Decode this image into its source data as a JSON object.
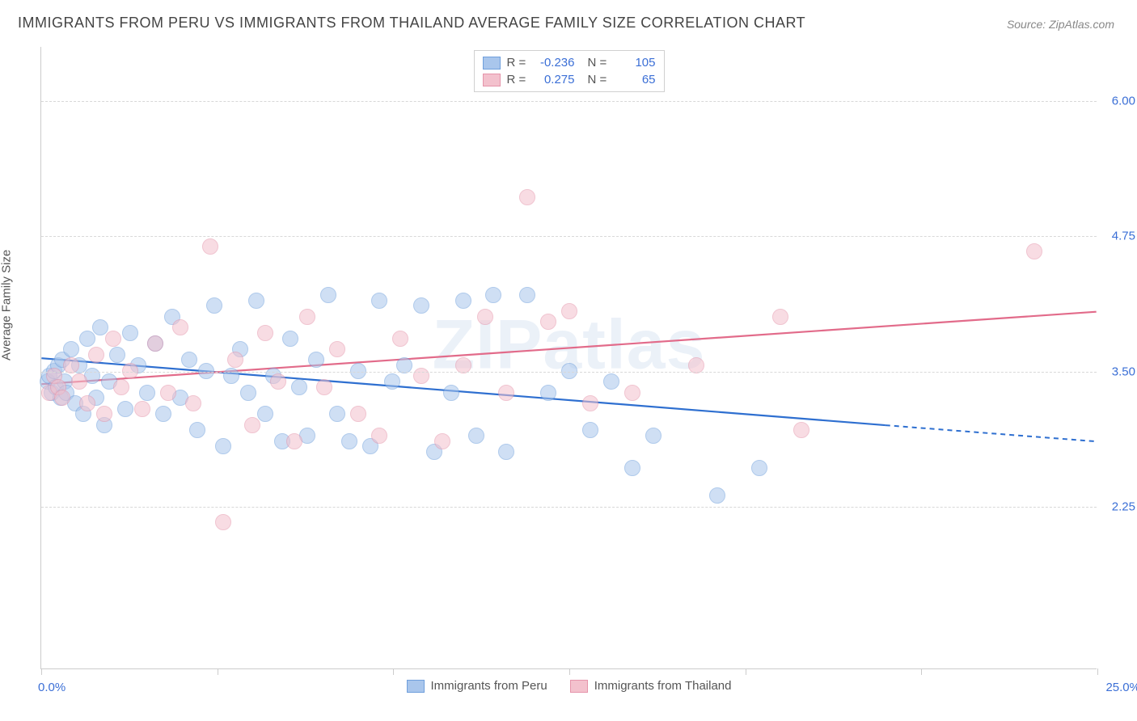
{
  "title": "IMMIGRANTS FROM PERU VS IMMIGRANTS FROM THAILAND AVERAGE FAMILY SIZE CORRELATION CHART",
  "source_prefix": "Source: ",
  "source_name": "ZipAtlas.com",
  "watermark_text": "ZIPatlas",
  "chart": {
    "type": "scatter",
    "ylabel": "Average Family Size",
    "xlim": [
      0.0,
      25.0
    ],
    "ylim": [
      0.75,
      6.5
    ],
    "xlim_labels": {
      "min": "0.0%",
      "max": "25.0%"
    },
    "yticks": [
      2.25,
      3.5,
      4.75,
      6.0
    ],
    "ytick_labels": [
      "2.25",
      "3.50",
      "4.75",
      "6.00"
    ],
    "xtick_positions": [
      0,
      4.17,
      8.33,
      12.5,
      16.67,
      20.83,
      25.0
    ],
    "background_color": "#ffffff",
    "grid_color": "#d8d8d8",
    "marker_radius": 10,
    "marker_opacity": 0.55,
    "series": [
      {
        "name": "Immigrants from Peru",
        "key": "peru",
        "fill_color": "#a9c6ec",
        "stroke_color": "#6f9fdc",
        "line_color": "#2e6fd0",
        "R": "-0.236",
        "N": "105",
        "trend": {
          "x1": 0.0,
          "y1": 3.62,
          "x2": 20.0,
          "y2": 3.0,
          "dash_x2": 25.0,
          "dash_y2": 2.85
        },
        "points": [
          [
            0.15,
            3.4
          ],
          [
            0.2,
            3.45
          ],
          [
            0.25,
            3.3
          ],
          [
            0.3,
            3.5
          ],
          [
            0.35,
            3.35
          ],
          [
            0.4,
            3.55
          ],
          [
            0.45,
            3.25
          ],
          [
            0.5,
            3.6
          ],
          [
            0.55,
            3.4
          ],
          [
            0.6,
            3.3
          ],
          [
            0.7,
            3.7
          ],
          [
            0.8,
            3.2
          ],
          [
            0.9,
            3.55
          ],
          [
            1.0,
            3.1
          ],
          [
            1.1,
            3.8
          ],
          [
            1.2,
            3.45
          ],
          [
            1.3,
            3.25
          ],
          [
            1.4,
            3.9
          ],
          [
            1.5,
            3.0
          ],
          [
            1.6,
            3.4
          ],
          [
            1.8,
            3.65
          ],
          [
            2.0,
            3.15
          ],
          [
            2.1,
            3.85
          ],
          [
            2.3,
            3.55
          ],
          [
            2.5,
            3.3
          ],
          [
            2.7,
            3.75
          ],
          [
            2.9,
            3.1
          ],
          [
            3.1,
            4.0
          ],
          [
            3.3,
            3.25
          ],
          [
            3.5,
            3.6
          ],
          [
            3.7,
            2.95
          ],
          [
            3.9,
            3.5
          ],
          [
            4.1,
            4.1
          ],
          [
            4.3,
            2.8
          ],
          [
            4.5,
            3.45
          ],
          [
            4.7,
            3.7
          ],
          [
            4.9,
            3.3
          ],
          [
            5.1,
            4.15
          ],
          [
            5.3,
            3.1
          ],
          [
            5.5,
            3.45
          ],
          [
            5.7,
            2.85
          ],
          [
            5.9,
            3.8
          ],
          [
            6.1,
            3.35
          ],
          [
            6.3,
            2.9
          ],
          [
            6.5,
            3.6
          ],
          [
            6.8,
            4.2
          ],
          [
            7.0,
            3.1
          ],
          [
            7.3,
            2.85
          ],
          [
            7.5,
            3.5
          ],
          [
            7.8,
            2.8
          ],
          [
            8.0,
            4.15
          ],
          [
            8.3,
            3.4
          ],
          [
            8.6,
            3.55
          ],
          [
            9.0,
            4.1
          ],
          [
            9.3,
            2.75
          ],
          [
            9.7,
            3.3
          ],
          [
            10.0,
            4.15
          ],
          [
            10.3,
            2.9
          ],
          [
            10.7,
            4.2
          ],
          [
            11.0,
            2.75
          ],
          [
            11.5,
            4.2
          ],
          [
            12.0,
            3.3
          ],
          [
            12.5,
            3.5
          ],
          [
            13.0,
            2.95
          ],
          [
            13.5,
            3.4
          ],
          [
            14.0,
            2.6
          ],
          [
            14.5,
            2.9
          ],
          [
            16.0,
            2.35
          ],
          [
            17.0,
            2.6
          ]
        ]
      },
      {
        "name": "Immigrants from Thailand",
        "key": "thailand",
        "fill_color": "#f3c1cd",
        "stroke_color": "#e594aa",
        "line_color": "#e26b8a",
        "R": "0.275",
        "N": "65",
        "trend": {
          "x1": 0.0,
          "y1": 3.38,
          "x2": 25.0,
          "y2": 4.05
        },
        "points": [
          [
            0.2,
            3.3
          ],
          [
            0.3,
            3.45
          ],
          [
            0.4,
            3.35
          ],
          [
            0.5,
            3.25
          ],
          [
            0.7,
            3.55
          ],
          [
            0.9,
            3.4
          ],
          [
            1.1,
            3.2
          ],
          [
            1.3,
            3.65
          ],
          [
            1.5,
            3.1
          ],
          [
            1.7,
            3.8
          ],
          [
            1.9,
            3.35
          ],
          [
            2.1,
            3.5
          ],
          [
            2.4,
            3.15
          ],
          [
            2.7,
            3.75
          ],
          [
            3.0,
            3.3
          ],
          [
            3.3,
            3.9
          ],
          [
            3.6,
            3.2
          ],
          [
            4.0,
            4.65
          ],
          [
            4.3,
            2.1
          ],
          [
            4.6,
            3.6
          ],
          [
            5.0,
            3.0
          ],
          [
            5.3,
            3.85
          ],
          [
            5.6,
            3.4
          ],
          [
            6.0,
            2.85
          ],
          [
            6.3,
            4.0
          ],
          [
            6.7,
            3.35
          ],
          [
            7.0,
            3.7
          ],
          [
            7.5,
            3.1
          ],
          [
            8.0,
            2.9
          ],
          [
            8.5,
            3.8
          ],
          [
            9.0,
            3.45
          ],
          [
            9.5,
            2.85
          ],
          [
            10.0,
            3.55
          ],
          [
            10.5,
            4.0
          ],
          [
            11.0,
            3.3
          ],
          [
            11.5,
            5.1
          ],
          [
            12.0,
            3.95
          ],
          [
            12.5,
            4.05
          ],
          [
            13.0,
            3.2
          ],
          [
            14.0,
            3.3
          ],
          [
            15.5,
            3.55
          ],
          [
            17.5,
            4.0
          ],
          [
            18.0,
            2.95
          ],
          [
            23.5,
            4.6
          ]
        ]
      }
    ]
  },
  "legend_bottom": [
    {
      "swatch_fill": "#a9c6ec",
      "swatch_stroke": "#6f9fdc",
      "label": "Immigrants from Peru"
    },
    {
      "swatch_fill": "#f3c1cd",
      "swatch_stroke": "#e594aa",
      "label": "Immigrants from Thailand"
    }
  ]
}
